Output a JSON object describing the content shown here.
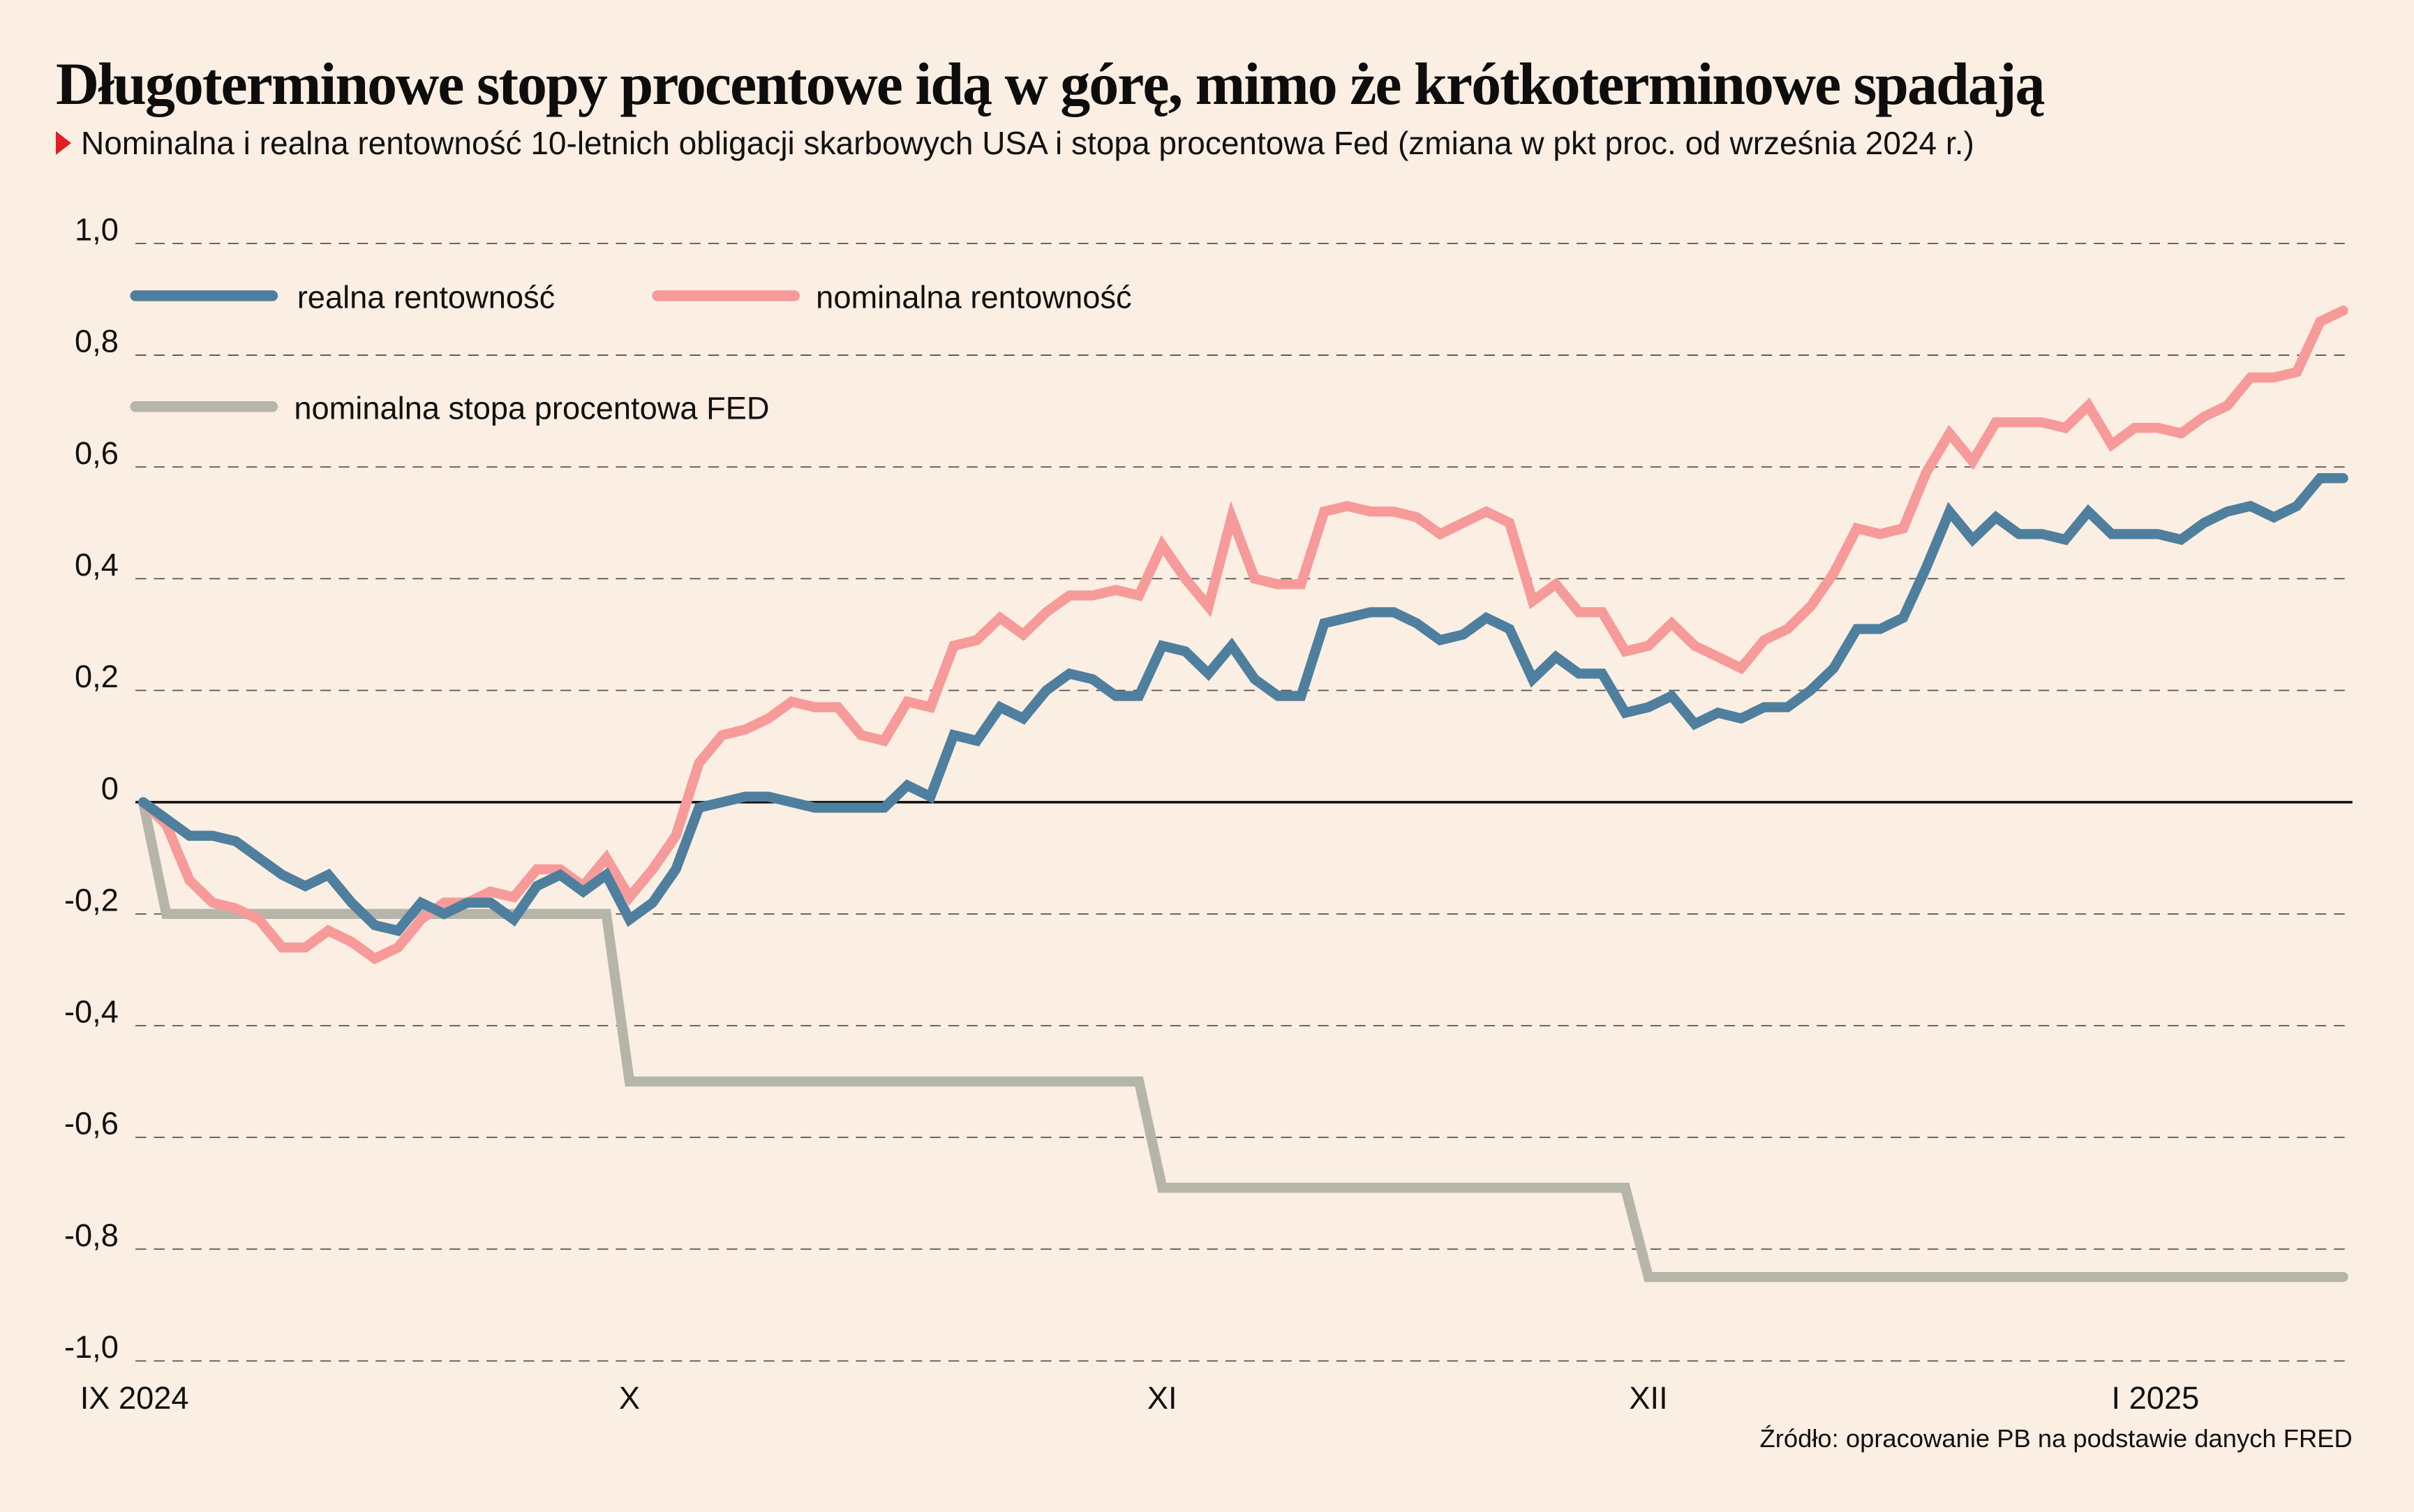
{
  "header": {
    "title": "Długoterminowe stopy procentowe idą w górę, mimo że krótkoterminowe spadają",
    "subtitle": "Nominalna i realna rentowność 10-letnich obligacji skarbowych USA i stopa procentowa Fed (zmiana w pkt proc. od września 2024 r.)",
    "marker_color": "#e31e24"
  },
  "source": "Źródło: opracowanie PB na podstawie danych FRED",
  "chart_data": {
    "type": "line",
    "title": "Długoterminowe stopy procentowe idą w górę, mimo że krótkoterminowe spadają",
    "subtitle": "Nominalna i realna rentowność 10-letnich obligacji skarbowych USA i stopa procentowa Fed (zmiana w pkt proc. od września 2024 r.)",
    "xlabel": "",
    "ylabel": "",
    "ylim": [
      -1.0,
      1.0
    ],
    "yticks": [
      1.0,
      0.8,
      0.6,
      0.4,
      0.2,
      0,
      -0.2,
      -0.4,
      -0.6,
      -0.8,
      -1.0
    ],
    "ytick_labels": [
      "1,0",
      "0,8",
      "0,6",
      "0,4",
      "0,2",
      "0",
      "-0,2",
      "-0,4",
      "-0,6",
      "-0,8",
      "-1,0"
    ],
    "x_count": 96,
    "xticks": [
      {
        "index": 0,
        "label": "IX 2024"
      },
      {
        "index": 21,
        "label": "X"
      },
      {
        "index": 44,
        "label": "XI"
      },
      {
        "index": 65,
        "label": "XII"
      },
      {
        "index": 85,
        "label": "I 2025"
      }
    ],
    "grid": "horizontal dashed",
    "zero_line": true,
    "legend_position": "top-left",
    "series": [
      {
        "name": "realna rentowność",
        "color": "#4e7f9e",
        "values": [
          0,
          -0.03,
          -0.06,
          -0.06,
          -0.07,
          -0.1,
          -0.13,
          -0.15,
          -0.13,
          -0.18,
          -0.22,
          -0.23,
          -0.18,
          -0.2,
          -0.18,
          -0.18,
          -0.21,
          -0.15,
          -0.13,
          -0.16,
          -0.13,
          -0.21,
          -0.18,
          -0.12,
          -0.01,
          0.0,
          0.01,
          0.01,
          0.0,
          -0.01,
          -0.01,
          -0.01,
          -0.01,
          0.03,
          0.01,
          0.12,
          0.11,
          0.17,
          0.15,
          0.2,
          0.23,
          0.22,
          0.19,
          0.19,
          0.28,
          0.27,
          0.23,
          0.28,
          0.22,
          0.19,
          0.19,
          0.32,
          0.33,
          0.34,
          0.34,
          0.32,
          0.29,
          0.3,
          0.33,
          0.31,
          0.22,
          0.26,
          0.23,
          0.23,
          0.16,
          0.17,
          0.19,
          0.14,
          0.16,
          0.15,
          0.17,
          0.17,
          0.2,
          0.24,
          0.31,
          0.31,
          0.33,
          0.42,
          0.52,
          0.47,
          0.51,
          0.48,
          0.48,
          0.47,
          0.52,
          0.48,
          0.48,
          0.48,
          0.47,
          0.5,
          0.52,
          0.53,
          0.51,
          0.53,
          0.58,
          0.58
        ]
      },
      {
        "name": "nominalna rentowność",
        "color": "#f79a9a",
        "values": [
          0,
          -0.04,
          -0.14,
          -0.18,
          -0.19,
          -0.21,
          -0.26,
          -0.26,
          -0.23,
          -0.25,
          -0.28,
          -0.26,
          -0.21,
          -0.18,
          -0.18,
          -0.16,
          -0.17,
          -0.12,
          -0.12,
          -0.15,
          -0.1,
          -0.17,
          -0.12,
          -0.06,
          0.07,
          0.12,
          0.13,
          0.15,
          0.18,
          0.17,
          0.17,
          0.12,
          0.11,
          0.18,
          0.17,
          0.28,
          0.29,
          0.33,
          0.3,
          0.34,
          0.37,
          0.37,
          0.38,
          0.37,
          0.46,
          0.4,
          0.35,
          0.51,
          0.4,
          0.39,
          0.39,
          0.52,
          0.53,
          0.52,
          0.52,
          0.51,
          0.48,
          0.5,
          0.52,
          0.5,
          0.36,
          0.39,
          0.34,
          0.34,
          0.27,
          0.28,
          0.32,
          0.28,
          0.26,
          0.24,
          0.29,
          0.31,
          0.35,
          0.41,
          0.49,
          0.48,
          0.49,
          0.59,
          0.66,
          0.61,
          0.68,
          0.68,
          0.68,
          0.67,
          0.71,
          0.64,
          0.67,
          0.67,
          0.66,
          0.69,
          0.71,
          0.76,
          0.76,
          0.77,
          0.86,
          0.88
        ]
      },
      {
        "name": "nominalna stopa procentowa FED",
        "color": "#b5b5aa",
        "values": [
          0,
          -0.2,
          -0.2,
          -0.2,
          -0.2,
          -0.2,
          -0.2,
          -0.2,
          -0.2,
          -0.2,
          -0.2,
          -0.2,
          -0.2,
          -0.2,
          -0.2,
          -0.2,
          -0.2,
          -0.2,
          -0.2,
          -0.2,
          -0.2,
          -0.5,
          -0.5,
          -0.5,
          -0.5,
          -0.5,
          -0.5,
          -0.5,
          -0.5,
          -0.5,
          -0.5,
          -0.5,
          -0.5,
          -0.5,
          -0.5,
          -0.5,
          -0.5,
          -0.5,
          -0.5,
          -0.5,
          -0.5,
          -0.5,
          -0.5,
          -0.5,
          -0.69,
          -0.69,
          -0.69,
          -0.69,
          -0.69,
          -0.69,
          -0.69,
          -0.69,
          -0.69,
          -0.69,
          -0.69,
          -0.69,
          -0.69,
          -0.69,
          -0.69,
          -0.69,
          -0.69,
          -0.69,
          -0.69,
          -0.69,
          -0.69,
          -0.85,
          -0.85,
          -0.85,
          -0.85,
          -0.85,
          -0.85,
          -0.85,
          -0.85,
          -0.85,
          -0.85,
          -0.85,
          -0.85,
          -0.85,
          -0.85,
          -0.85,
          -0.85,
          -0.85,
          -0.85,
          -0.85,
          -0.85,
          -0.85,
          -0.85,
          -0.85,
          -0.85,
          -0.85,
          -0.85,
          -0.85,
          -0.85,
          -0.85,
          -0.85,
          -0.85
        ]
      }
    ]
  }
}
